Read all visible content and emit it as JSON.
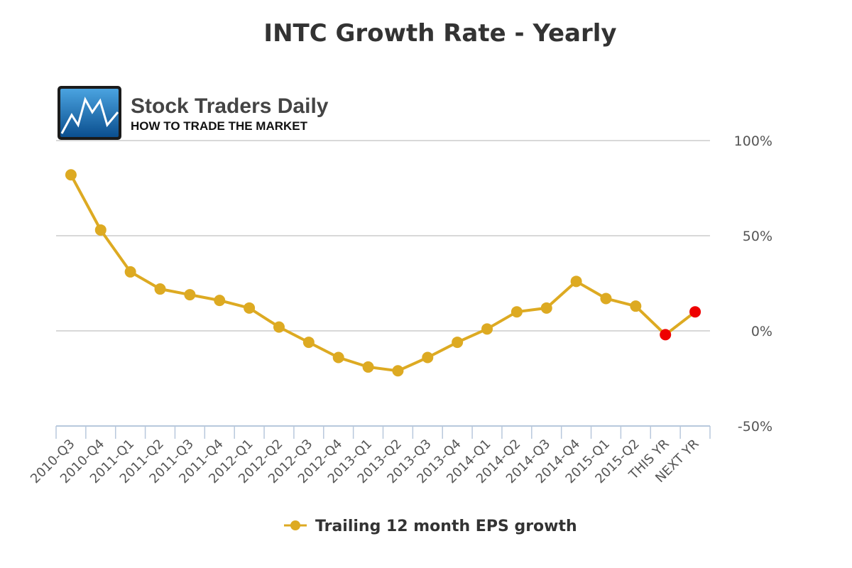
{
  "logo": {
    "name": "Stock Traders Daily",
    "tagline": "HOW TO TRADE THE MARKET"
  },
  "chart_data": {
    "type": "line",
    "title": "INTC Growth Rate - Yearly",
    "xlabel": "",
    "ylabel": "",
    "categories": [
      "2010-Q3",
      "2010-Q4",
      "2011-Q1",
      "2011-Q2",
      "2011-Q3",
      "2011-Q4",
      "2012-Q1",
      "2012-Q2",
      "2012-Q3",
      "2012-Q4",
      "2013-Q1",
      "2013-Q2",
      "2013-Q3",
      "2013-Q4",
      "2014-Q1",
      "2014-Q2",
      "2014-Q3",
      "2014-Q4",
      "2015-Q1",
      "2015-Q2",
      "THIS YR",
      "NEXT YR"
    ],
    "series": [
      {
        "name": "Trailing 12 month EPS growth",
        "values": [
          82,
          53,
          31,
          22,
          19,
          16,
          12,
          2,
          -6,
          -14,
          -19,
          -21,
          -14,
          -6,
          1,
          10,
          12,
          26,
          17,
          13,
          -2,
          10
        ],
        "color": "#DDAA22",
        "highlight_color": "#EE0000",
        "highlight_categories": [
          "THIS YR",
          "NEXT YR"
        ]
      }
    ],
    "ylim": [
      -50,
      100
    ],
    "yticks": [
      -50,
      0,
      50,
      100
    ],
    "ytick_labels": [
      "-50%",
      "0%",
      "50%",
      "100%"
    ],
    "grid": true,
    "legend_position": "bottom-center",
    "y_axis_side": "right",
    "grid_color": "#CCCCCC",
    "axis_color": "#B8C8DC"
  }
}
